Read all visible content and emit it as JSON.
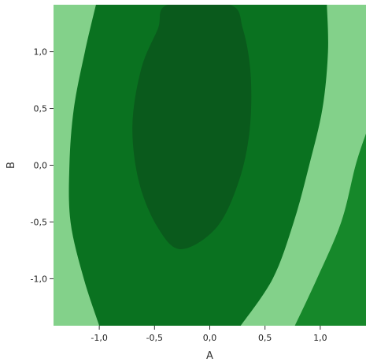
{
  "chart_data": {
    "type": "contour",
    "title": "",
    "xlabel": "A",
    "ylabel": "B",
    "xlim": [
      -1.414,
      1.414
    ],
    "ylim": [
      -1.414,
      1.414
    ],
    "x_ticks": [
      {
        "value": -1.0,
        "label": "-1,0"
      },
      {
        "value": -0.5,
        "label": "-0,5"
      },
      {
        "value": 0.0,
        "label": "0,0"
      },
      {
        "value": 0.5,
        "label": "0,5"
      },
      {
        "value": 1.0,
        "label": "1,0"
      }
    ],
    "y_ticks": [
      {
        "value": -1.0,
        "label": "-1,0"
      },
      {
        "value": -0.5,
        "label": "-0,5"
      },
      {
        "value": 0.0,
        "label": "0,0"
      },
      {
        "value": 0.5,
        "label": "0,5"
      },
      {
        "value": 1.0,
        "label": "1,0"
      }
    ],
    "grid": false,
    "legend": "none",
    "regions": [
      {
        "color": "#83d18a",
        "boundary": null
      },
      {
        "color": "#5db865",
        "boundary": [
          [
            1.13,
            -1.414
          ],
          [
            1.28,
            -1.1
          ],
          [
            1.414,
            -0.72
          ]
        ]
      },
      {
        "color": "#16882a",
        "boundary": [
          [
            0.77,
            -1.414
          ],
          [
            0.97,
            -1.0
          ],
          [
            1.19,
            -0.5
          ],
          [
            1.32,
            0.0
          ],
          [
            1.414,
            0.28
          ]
        ]
      },
      {
        "color": "#0a7220",
        "boundary": [
          [
            -1.0,
            -1.414
          ],
          [
            -1.14,
            -1.0
          ],
          [
            -1.26,
            -0.5
          ],
          [
            -1.27,
            0.0
          ],
          [
            -1.23,
            0.5
          ],
          [
            -1.13,
            1.0
          ],
          [
            -1.03,
            1.414
          ],
          [
            1.06,
            1.414
          ],
          [
            1.07,
            1.0
          ],
          [
            1.02,
            0.5
          ],
          [
            0.9,
            0.0
          ],
          [
            0.76,
            -0.5
          ],
          [
            0.57,
            -1.0
          ],
          [
            0.28,
            -1.414
          ]
        ]
      },
      {
        "color": "#0a5a1c",
        "boundary": [
          [
            -0.26,
            -0.74
          ],
          [
            -0.47,
            -0.55
          ],
          [
            -0.64,
            -0.15
          ],
          [
            -0.7,
            0.35
          ],
          [
            -0.62,
            0.85
          ],
          [
            -0.47,
            1.2
          ],
          [
            -0.38,
            1.414
          ],
          [
            0.18,
            1.414
          ],
          [
            0.3,
            1.2
          ],
          [
            0.37,
            0.8
          ],
          [
            0.36,
            0.3
          ],
          [
            0.26,
            -0.15
          ],
          [
            0.06,
            -0.55
          ]
        ]
      }
    ]
  }
}
